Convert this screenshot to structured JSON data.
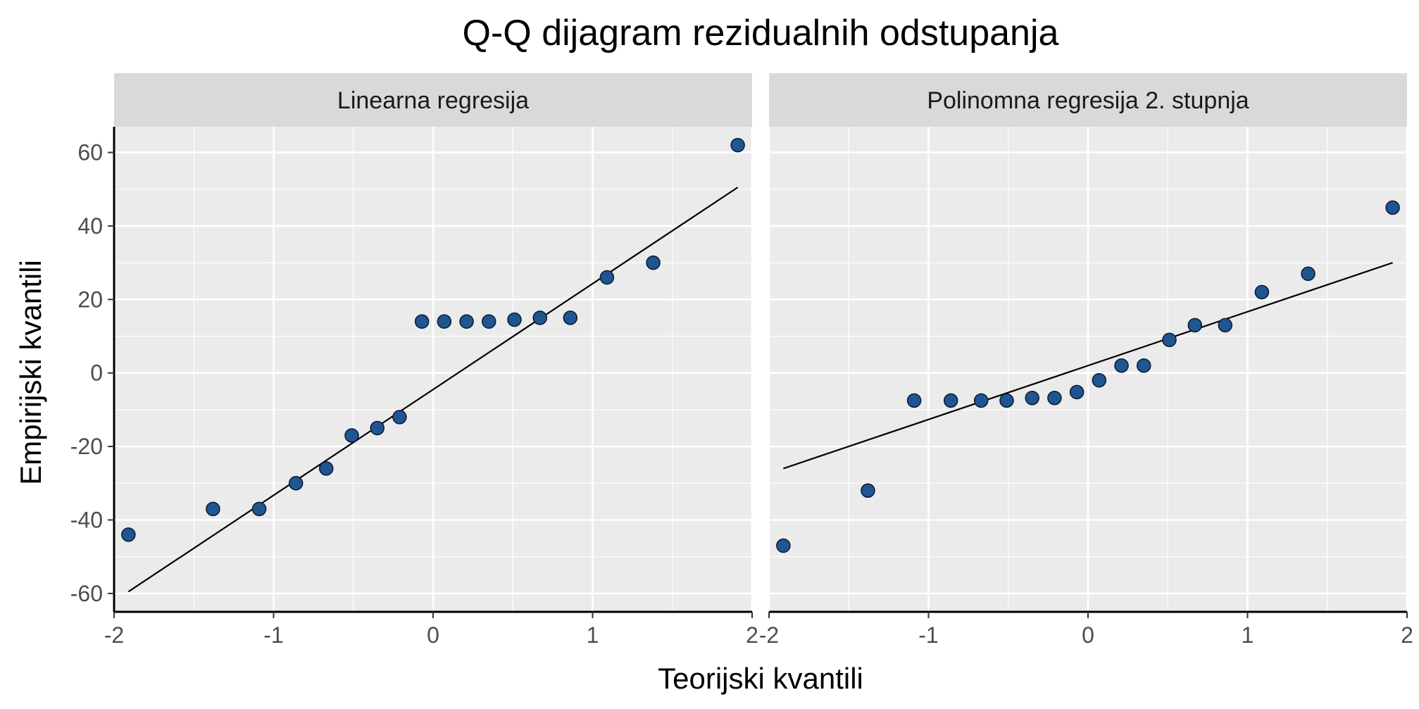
{
  "title": "Q-Q dijagram rezidualnih odstupanja",
  "xlabel": "Teorijski kvantili",
  "ylabel": "Empirijski kvantili",
  "colors": {
    "panel_background": "#EBEBEB",
    "strip_background": "#D9D9D9",
    "grid": "#FFFFFF",
    "point_fill": "#1F5591",
    "point_stroke": "#0A1A2E",
    "reference_line": "#000000"
  },
  "chart_data": [
    {
      "type": "scatter",
      "panel": "Linearna regresija",
      "xlim": [
        -2.0,
        2.0
      ],
      "ylim": [
        -65,
        67
      ],
      "xticks": [
        -2,
        -1,
        0,
        1,
        2
      ],
      "yticks": [
        -60,
        -40,
        -20,
        0,
        20,
        40,
        60
      ],
      "grid": true,
      "points": {
        "x": [
          -1.91,
          -1.38,
          -1.09,
          -0.86,
          -0.67,
          -0.51,
          -0.35,
          -0.21,
          -0.07,
          0.07,
          0.21,
          0.35,
          0.51,
          0.67,
          0.86,
          1.09,
          1.38,
          1.91
        ],
        "y": [
          -44,
          -37,
          -37,
          -30,
          -26,
          -17,
          -15,
          -12,
          14,
          14,
          14,
          14,
          14.5,
          15,
          15,
          26,
          30,
          62
        ]
      },
      "reference_line": {
        "x": [
          -1.91,
          1.91
        ],
        "y": [
          -59.5,
          50.5
        ]
      }
    },
    {
      "type": "scatter",
      "panel": "Polinomna regresija 2. stupnja",
      "xlim": [
        -2.0,
        2.0
      ],
      "ylim": [
        -65,
        67
      ],
      "xticks": [
        -2,
        -1,
        0,
        1,
        2
      ],
      "yticks": [
        -60,
        -40,
        -20,
        0,
        20,
        40,
        60
      ],
      "grid": true,
      "points": {
        "x": [
          -1.91,
          -1.38,
          -1.09,
          -0.86,
          -0.67,
          -0.51,
          -0.35,
          -0.21,
          -0.07,
          0.07,
          0.21,
          0.35,
          0.51,
          0.67,
          0.86,
          1.09,
          1.38,
          1.91
        ],
        "y": [
          -47,
          -32,
          -7.5,
          -7.5,
          -7.5,
          -7.5,
          -6.8,
          -6.8,
          -5.2,
          -2,
          2,
          2,
          9,
          13,
          13,
          22,
          27,
          45
        ]
      },
      "reference_line": {
        "x": [
          -1.91,
          1.91
        ],
        "y": [
          -26,
          30
        ]
      }
    }
  ]
}
